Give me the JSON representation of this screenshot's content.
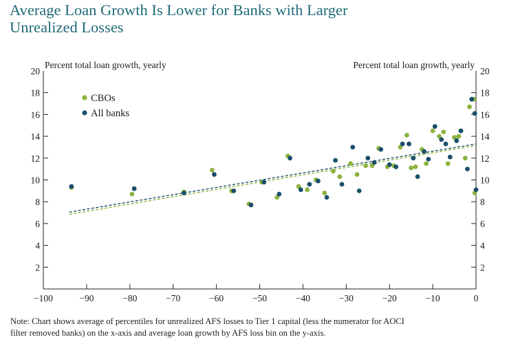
{
  "title_lines": [
    "Average Loan Growth Is Lower for Banks with Larger",
    "Unrealized Losses"
  ],
  "note_lines": [
    "Note: Chart shows average of percentiles for unrealized AFS losses to Tier 1 capital (less the numerator for AOCI",
    "filter removed banks) on the x-axis and average loan growth by AFS loss bin on the y-axis."
  ],
  "colors": {
    "title": "#1f6b78",
    "cbo": "#8db33f",
    "all_banks": "#1b4f6b"
  },
  "chart_data": {
    "type": "scatter",
    "ylabel_left": "Percent total loan growth, yearly",
    "ylabel_right": "Percent total loan growth, yearly",
    "xlim": [
      -100,
      0
    ],
    "ylim": [
      0,
      20
    ],
    "x_ticks": [
      -100,
      -90,
      -80,
      -70,
      -60,
      -50,
      -40,
      -30,
      -20,
      -10,
      0
    ],
    "x_tick_labels": [
      "−100",
      "−90",
      "−80",
      "−70",
      "−60",
      "−50",
      "−40",
      "−30",
      "−20",
      "−10",
      "0"
    ],
    "y_ticks": [
      2,
      4,
      6,
      8,
      10,
      12,
      14,
      16,
      18,
      20
    ],
    "y_tick_labels": [
      "2",
      "4",
      "6",
      "8",
      "10",
      "12",
      "14",
      "16",
      "18",
      "20"
    ],
    "legend_position": "top-left",
    "grid": false,
    "series": [
      {
        "name": "CBOs",
        "color": "#8db33f",
        "points": [
          [
            -93.5,
            9.3
          ],
          [
            -79.5,
            8.7
          ],
          [
            -67.5,
            8.9
          ],
          [
            -61,
            10.9
          ],
          [
            -56.5,
            9.0
          ],
          [
            -52.5,
            7.8
          ],
          [
            -49.5,
            9.8
          ],
          [
            -46,
            8.4
          ],
          [
            -43.5,
            12.2
          ],
          [
            -41,
            9.4
          ],
          [
            -39,
            9.1
          ],
          [
            -37,
            10.0
          ],
          [
            -35,
            8.8
          ],
          [
            -33,
            10.8
          ],
          [
            -31.5,
            10.3
          ],
          [
            -29,
            11.5
          ],
          [
            -27.5,
            10.5
          ],
          [
            -25.5,
            11.3
          ],
          [
            -24,
            11.3
          ],
          [
            -22.5,
            12.9
          ],
          [
            -20.5,
            11.2
          ],
          [
            -19,
            11.3
          ],
          [
            -17.5,
            13.0
          ],
          [
            -16,
            14.1
          ],
          [
            -15,
            11.1
          ],
          [
            -14,
            11.2
          ],
          [
            -12.5,
            12.8
          ],
          [
            -11.5,
            11.5
          ],
          [
            -10,
            14.5
          ],
          [
            -8.5,
            14.0
          ],
          [
            -7.5,
            14.4
          ],
          [
            -6.5,
            11.5
          ],
          [
            -5,
            13.9
          ],
          [
            -4,
            14.0
          ],
          [
            -2.5,
            12.0
          ],
          [
            -1.5,
            16.7
          ],
          [
            -0.5,
            17.4
          ],
          [
            -0.3,
            8.8
          ]
        ]
      },
      {
        "name": "All banks",
        "color": "#1b4f6b",
        "points": [
          [
            -93.5,
            9.4
          ],
          [
            -79,
            9.2
          ],
          [
            -67.5,
            8.8
          ],
          [
            -60.5,
            10.5
          ],
          [
            -56,
            9.0
          ],
          [
            -52,
            7.7
          ],
          [
            -49,
            9.8
          ],
          [
            -45.5,
            8.7
          ],
          [
            -43,
            12.0
          ],
          [
            -40.5,
            9.1
          ],
          [
            -38.5,
            9.6
          ],
          [
            -36.5,
            9.9
          ],
          [
            -34.5,
            8.4
          ],
          [
            -32.5,
            11.8
          ],
          [
            -31,
            9.6
          ],
          [
            -28.5,
            13.0
          ],
          [
            -27,
            9.0
          ],
          [
            -25,
            12.0
          ],
          [
            -23.5,
            11.6
          ],
          [
            -22,
            12.8
          ],
          [
            -20,
            11.4
          ],
          [
            -18.5,
            11.2
          ],
          [
            -17,
            13.3
          ],
          [
            -15.5,
            13.3
          ],
          [
            -14.5,
            12.0
          ],
          [
            -13.5,
            10.3
          ],
          [
            -12,
            12.6
          ],
          [
            -11,
            11.9
          ],
          [
            -9.5,
            14.9
          ],
          [
            -8,
            13.7
          ],
          [
            -7,
            13.3
          ],
          [
            -6,
            12.1
          ],
          [
            -4.5,
            13.6
          ],
          [
            -3.5,
            14.5
          ],
          [
            -2,
            11.0
          ],
          [
            -1,
            17.4
          ],
          [
            -0.3,
            16.1
          ],
          [
            0,
            9.1
          ]
        ]
      }
    ],
    "trend_lines": [
      {
        "series": "CBOs",
        "x": [
          -94,
          0
        ],
        "y": [
          6.85,
          13.15
        ]
      },
      {
        "series": "All banks",
        "x": [
          -94,
          0
        ],
        "y": [
          7.05,
          13.3
        ]
      }
    ]
  }
}
